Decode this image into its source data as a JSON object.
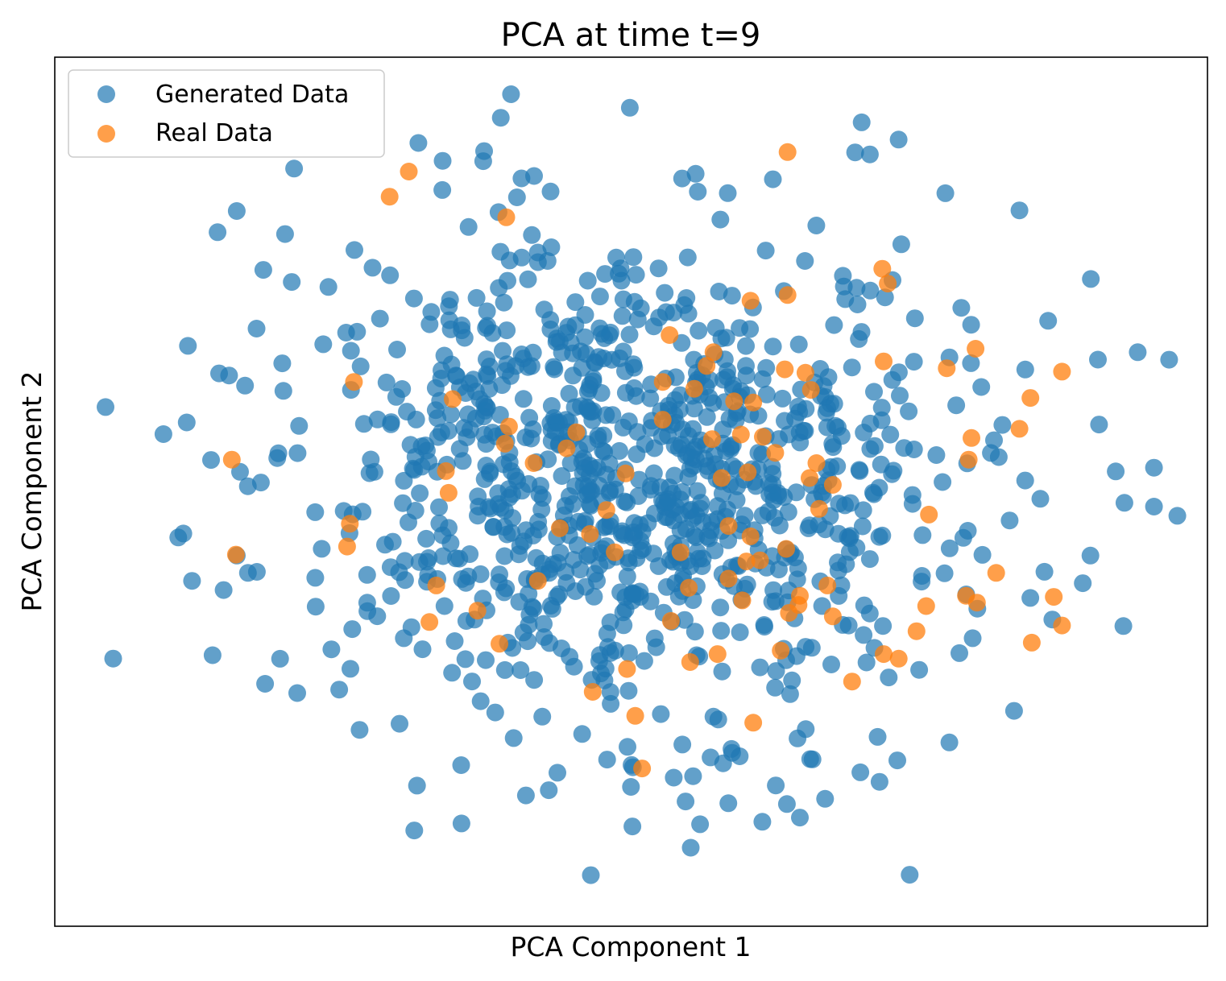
{
  "chart_data": {
    "type": "scatter",
    "title": "PCA at time t=9",
    "xlabel": "PCA Component 1",
    "ylabel": "PCA Component 2",
    "xlim": [
      -4.2,
      4.2
    ],
    "ylim": [
      -3.8,
      3.8
    ],
    "grid": false,
    "legend_position": "top-left",
    "ticks_visible": false,
    "series": [
      {
        "name": "Generated Data",
        "color": "#1f77b4",
        "alpha": 0.7,
        "note": "~1000 points, roughly isotropic Gaussian cloud centered near origin (sampled with fixed seed)",
        "distribution": {
          "mean": [
            0.0,
            0.0
          ],
          "std": [
            1.2,
            1.15
          ],
          "count": 1000,
          "seed": 9
        },
        "outliers": [
          [
            -3.83,
            0.74
          ],
          [
            -3.3,
            -0.4
          ],
          [
            -3.2,
            -0.78
          ],
          [
            -2.68,
            1.94
          ],
          [
            1.68,
            3.23
          ],
          [
            2.29,
            2.61
          ],
          [
            3.81,
            -0.13
          ],
          [
            3.81,
            0.21
          ],
          [
            2.03,
            -3.35
          ],
          [
            1.23,
            -2.85
          ],
          [
            -1.55,
            3.05
          ],
          [
            -0.95,
            3.27
          ],
          [
            0.47,
            2.78
          ],
          [
            1.74,
            2.95
          ],
          [
            2.83,
            2.46
          ],
          [
            3.35,
            1.86
          ],
          [
            -3.05,
            -1.43
          ],
          [
            -1.56,
            -2.57
          ],
          [
            1.94,
            -2.35
          ],
          [
            -0.6,
            -2.61
          ]
        ]
      },
      {
        "name": "Real Data",
        "color": "#ff7f0e",
        "alpha": 0.75,
        "points": [
          [
            -1.62,
            2.8
          ],
          [
            -1.76,
            2.58
          ],
          [
            -0.91,
            2.4
          ],
          [
            1.14,
            2.97
          ],
          [
            1.83,
            1.95
          ],
          [
            3.14,
            1.05
          ],
          [
            -2.91,
            0.28
          ],
          [
            -2.88,
            -0.55
          ],
          [
            -2.02,
            0.96
          ],
          [
            -2.05,
            -0.28
          ],
          [
            -2.07,
            -0.48
          ],
          [
            -1.3,
            0.81
          ],
          [
            -1.35,
            0.18
          ],
          [
            -1.33,
            -0.01
          ],
          [
            -1.47,
            -1.14
          ],
          [
            -1.42,
            -0.82
          ],
          [
            -1.12,
            -1.04
          ],
          [
            -0.96,
            -1.33
          ],
          [
            -0.89,
            0.57
          ],
          [
            -0.92,
            0.42
          ],
          [
            -0.71,
            0.25
          ],
          [
            -0.68,
            -0.78
          ],
          [
            -0.52,
            -0.32
          ],
          [
            -0.4,
            0.52
          ],
          [
            -0.47,
            0.38
          ],
          [
            -0.28,
            -1.75
          ],
          [
            -0.3,
            -0.37
          ],
          [
            -0.18,
            -0.16
          ],
          [
            -0.04,
            0.16
          ],
          [
            -0.03,
            -1.55
          ],
          [
            0.03,
            -1.96
          ],
          [
            0.08,
            -2.42
          ],
          [
            -0.12,
            -0.53
          ],
          [
            0.28,
            1.37
          ],
          [
            0.23,
            0.96
          ],
          [
            0.23,
            0.63
          ],
          [
            0.29,
            -1.13
          ],
          [
            0.36,
            -0.53
          ],
          [
            0.42,
            -0.84
          ],
          [
            0.46,
            0.9
          ],
          [
            0.43,
            -1.49
          ],
          [
            0.55,
            1.1
          ],
          [
            0.6,
            1.22
          ],
          [
            0.59,
            0.46
          ],
          [
            0.75,
            0.79
          ],
          [
            0.66,
            0.12
          ],
          [
            0.71,
            -0.3
          ],
          [
            0.71,
            -0.76
          ],
          [
            0.8,
            0.5
          ],
          [
            0.87,
            1.67
          ],
          [
            0.85,
            0.17
          ],
          [
            0.87,
            -0.39
          ],
          [
            0.96,
            0.48
          ],
          [
            0.81,
            -0.95
          ],
          [
            0.84,
            -0.61
          ],
          [
            0.63,
            -1.42
          ],
          [
            0.89,
            0.78
          ],
          [
            0.89,
            -2.02
          ],
          [
            0.94,
            -0.6
          ],
          [
            1.05,
            0.34
          ],
          [
            1.14,
            1.72
          ],
          [
            1.12,
            1.07
          ],
          [
            1.13,
            -0.5
          ],
          [
            1.15,
            -1.06
          ],
          [
            1.27,
            1.04
          ],
          [
            1.3,
            0.12
          ],
          [
            1.35,
            0.25
          ],
          [
            1.37,
            -0.15
          ],
          [
            1.23,
            -0.91
          ],
          [
            1.09,
            -1.39
          ],
          [
            1.31,
            0.89
          ],
          [
            1.22,
            -0.99
          ],
          [
            1.43,
            -0.82
          ],
          [
            1.47,
            -1.09
          ],
          [
            1.47,
            0.06
          ],
          [
            1.87,
            1.82
          ],
          [
            1.84,
            1.14
          ],
          [
            1.95,
            -1.46
          ],
          [
            1.84,
            -1.42
          ],
          [
            2.08,
            -1.22
          ],
          [
            2.15,
            -1.0
          ],
          [
            2.17,
            -0.2
          ],
          [
            2.3,
            1.08
          ],
          [
            2.51,
            1.25
          ],
          [
            2.44,
            -0.91
          ],
          [
            2.46,
            0.28
          ],
          [
            2.52,
            -0.97
          ],
          [
            2.91,
            0.82
          ],
          [
            2.92,
            -1.32
          ],
          [
            2.48,
            0.47
          ],
          [
            2.83,
            0.55
          ],
          [
            3.08,
            -0.92
          ],
          [
            3.14,
            -1.17
          ],
          [
            2.66,
            -0.71
          ],
          [
            1.61,
            -1.66
          ]
        ]
      }
    ]
  },
  "legend": {
    "items": [
      {
        "label": "Generated Data",
        "color": "#1f77b4"
      },
      {
        "label": "Real Data",
        "color": "#ff7f0e"
      }
    ]
  }
}
